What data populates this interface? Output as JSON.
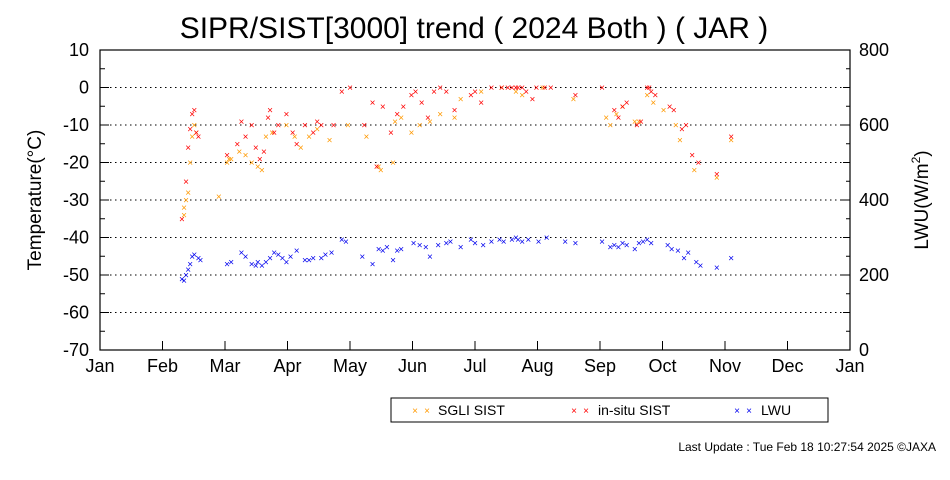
{
  "chart_data": {
    "type": "scatter",
    "title": "SIPR/SIST[3000] trend ( 2024 Both ) ( JAR )",
    "ylabel": "Temperature(°C)",
    "y2label": "LWU(W/m",
    "y2label_sup": "2",
    "y2label_suffix": ")",
    "ylim": [
      -70,
      10
    ],
    "y2lim": [
      0,
      800
    ],
    "yticks": [
      "10",
      "0",
      "-10",
      "-20",
      "-30",
      "-40",
      "-50",
      "-60",
      "-70"
    ],
    "y2ticks": [
      "800",
      "600",
      "400",
      "200",
      "0"
    ],
    "months": [
      "Jan",
      "Feb",
      "Mar",
      "Apr",
      "May",
      "Jun",
      "Jul",
      "Aug",
      "Sep",
      "Oct",
      "Nov",
      "Dec",
      "Jan"
    ],
    "grid": "dotted horizontal",
    "legend_position": "bottom",
    "marker": "×",
    "series": [
      {
        "name": "SGLI SIST",
        "color": "#ff9900",
        "axis": "left",
        "points": [
          [
            "2024-02-11",
            -34
          ],
          [
            "2024-02-11",
            -32
          ],
          [
            "2024-02-12",
            -30
          ],
          [
            "2024-02-13",
            -28
          ],
          [
            "2024-02-14",
            -20
          ],
          [
            "2024-02-15",
            -13
          ],
          [
            "2024-02-16",
            -10
          ],
          [
            "2024-02-17",
            -12
          ],
          [
            "2024-02-28",
            -29
          ],
          [
            "2024-03-03",
            -20
          ],
          [
            "2024-03-04",
            -19
          ],
          [
            "2024-03-05",
            -19
          ],
          [
            "2024-03-09",
            -17
          ],
          [
            "2024-03-12",
            -18
          ],
          [
            "2024-03-15",
            -20
          ],
          [
            "2024-03-18",
            -21
          ],
          [
            "2024-03-20",
            -22
          ],
          [
            "2024-03-22",
            -13
          ],
          [
            "2024-03-25",
            -12
          ],
          [
            "2024-04-01",
            -10
          ],
          [
            "2024-04-05",
            -13
          ],
          [
            "2024-04-08",
            -16
          ],
          [
            "2024-04-12",
            -13
          ],
          [
            "2024-04-16",
            -11
          ],
          [
            "2024-04-22",
            -14
          ],
          [
            "2024-05-01",
            -10
          ],
          [
            "2024-05-10",
            -13
          ],
          [
            "2024-05-16",
            -21
          ],
          [
            "2024-05-17",
            -22
          ],
          [
            "2024-05-23",
            -20
          ],
          [
            "2024-05-24",
            -9
          ],
          [
            "2024-05-27",
            -8
          ],
          [
            "2024-06-01",
            -12
          ],
          [
            "2024-06-05",
            -10
          ],
          [
            "2024-06-10",
            -9
          ],
          [
            "2024-06-15",
            -7
          ],
          [
            "2024-06-22",
            -8
          ],
          [
            "2024-06-25",
            -3
          ],
          [
            "2024-07-05",
            -1
          ],
          [
            "2024-07-15",
            0
          ],
          [
            "2024-07-22",
            -1
          ],
          [
            "2024-07-25",
            -2
          ],
          [
            "2024-08-04",
            0
          ],
          [
            "2024-08-19",
            -3
          ],
          [
            "2024-09-04",
            -8
          ],
          [
            "2024-09-06",
            -10
          ],
          [
            "2024-09-09",
            -7
          ],
          [
            "2024-09-12",
            -5
          ],
          [
            "2024-09-18",
            -9
          ],
          [
            "2024-09-20",
            -9
          ],
          [
            "2024-09-24",
            -2
          ],
          [
            "2024-09-27",
            -4
          ],
          [
            "2024-10-02",
            -6
          ],
          [
            "2024-10-08",
            -10
          ],
          [
            "2024-10-10",
            -14
          ],
          [
            "2024-10-17",
            -22
          ],
          [
            "2024-10-28",
            -24
          ],
          [
            "2024-11-04",
            -14
          ]
        ]
      },
      {
        "name": "in-situ SIST",
        "color": "#ff0000",
        "axis": "left",
        "points": [
          [
            "2024-02-10",
            -35
          ],
          [
            "2024-02-12",
            -25
          ],
          [
            "2024-02-13",
            -16
          ],
          [
            "2024-02-14",
            -11
          ],
          [
            "2024-02-15",
            -7
          ],
          [
            "2024-02-16",
            -6
          ],
          [
            "2024-02-17",
            -12
          ],
          [
            "2024-02-18",
            -13
          ],
          [
            "2024-03-03",
            -18
          ],
          [
            "2024-03-08",
            -15
          ],
          [
            "2024-03-10",
            -9
          ],
          [
            "2024-03-12",
            -13
          ],
          [
            "2024-03-15",
            -10
          ],
          [
            "2024-03-17",
            -16
          ],
          [
            "2024-03-19",
            -19
          ],
          [
            "2024-03-21",
            -17
          ],
          [
            "2024-03-23",
            -8
          ],
          [
            "2024-03-24",
            -6
          ],
          [
            "2024-03-26",
            -12
          ],
          [
            "2024-03-28",
            -10
          ],
          [
            "2024-04-01",
            -7
          ],
          [
            "2024-04-04",
            -12
          ],
          [
            "2024-04-06",
            -15
          ],
          [
            "2024-04-10",
            -10
          ],
          [
            "2024-04-14",
            -12
          ],
          [
            "2024-04-16",
            -9
          ],
          [
            "2024-04-18",
            -10
          ],
          [
            "2024-04-24",
            -10
          ],
          [
            "2024-04-28",
            -1
          ],
          [
            "2024-05-02",
            0
          ],
          [
            "2024-05-09",
            -10
          ],
          [
            "2024-05-13",
            -4
          ],
          [
            "2024-05-15",
            -21
          ],
          [
            "2024-05-18",
            -5
          ],
          [
            "2024-05-22",
            -12
          ],
          [
            "2024-05-25",
            -7
          ],
          [
            "2024-05-28",
            -5
          ],
          [
            "2024-06-01",
            -2
          ],
          [
            "2024-06-03",
            -1
          ],
          [
            "2024-06-06",
            -4
          ],
          [
            "2024-06-09",
            -8
          ],
          [
            "2024-06-12",
            -1
          ],
          [
            "2024-06-15",
            0
          ],
          [
            "2024-06-18",
            -1
          ],
          [
            "2024-06-22",
            -6
          ],
          [
            "2024-06-30",
            -2
          ],
          [
            "2024-07-02",
            -1
          ],
          [
            "2024-07-05",
            -4
          ],
          [
            "2024-07-10",
            0
          ],
          [
            "2024-07-15",
            0
          ],
          [
            "2024-07-18",
            0
          ],
          [
            "2024-07-20",
            0
          ],
          [
            "2024-07-22",
            0
          ],
          [
            "2024-07-23",
            0
          ],
          [
            "2024-07-25",
            0
          ],
          [
            "2024-07-27",
            -1
          ],
          [
            "2024-07-30",
            -3
          ],
          [
            "2024-08-01",
            0
          ],
          [
            "2024-08-05",
            0
          ],
          [
            "2024-08-08",
            0
          ],
          [
            "2024-08-20",
            -2
          ],
          [
            "2024-09-02",
            0
          ],
          [
            "2024-09-08",
            -6
          ],
          [
            "2024-09-10",
            -8
          ],
          [
            "2024-09-12",
            -5
          ],
          [
            "2024-09-14",
            -4
          ],
          [
            "2024-09-19",
            -10
          ],
          [
            "2024-09-21",
            -9
          ],
          [
            "2024-09-24",
            0
          ],
          [
            "2024-09-25",
            0
          ],
          [
            "2024-09-26",
            -1
          ],
          [
            "2024-09-28",
            -2
          ],
          [
            "2024-10-05",
            -5
          ],
          [
            "2024-10-07",
            -6
          ],
          [
            "2024-10-11",
            -11
          ],
          [
            "2024-10-13",
            -10
          ],
          [
            "2024-10-16",
            -18
          ],
          [
            "2024-10-19",
            -20
          ],
          [
            "2024-10-28",
            -23
          ],
          [
            "2024-11-04",
            -13
          ]
        ]
      },
      {
        "name": "LWU",
        "color": "#0000ee",
        "axis": "right",
        "points": [
          [
            "2024-02-10",
            190
          ],
          [
            "2024-02-11",
            185
          ],
          [
            "2024-02-12",
            200
          ],
          [
            "2024-02-13",
            215
          ],
          [
            "2024-02-14",
            230
          ],
          [
            "2024-02-15",
            250
          ],
          [
            "2024-02-16",
            255
          ],
          [
            "2024-02-18",
            245
          ],
          [
            "2024-02-19",
            240
          ],
          [
            "2024-03-03",
            230
          ],
          [
            "2024-03-05",
            235
          ],
          [
            "2024-03-10",
            260
          ],
          [
            "2024-03-12",
            250
          ],
          [
            "2024-03-15",
            230
          ],
          [
            "2024-03-17",
            225
          ],
          [
            "2024-03-18",
            235
          ],
          [
            "2024-03-20",
            225
          ],
          [
            "2024-03-22",
            235
          ],
          [
            "2024-03-24",
            245
          ],
          [
            "2024-03-26",
            260
          ],
          [
            "2024-03-28",
            255
          ],
          [
            "2024-03-30",
            245
          ],
          [
            "2024-04-01",
            235
          ],
          [
            "2024-04-03",
            250
          ],
          [
            "2024-04-06",
            265
          ],
          [
            "2024-04-10",
            240
          ],
          [
            "2024-04-12",
            240
          ],
          [
            "2024-04-14",
            245
          ],
          [
            "2024-04-18",
            245
          ],
          [
            "2024-04-20",
            255
          ],
          [
            "2024-04-23",
            260
          ],
          [
            "2024-04-28",
            295
          ],
          [
            "2024-04-30",
            290
          ],
          [
            "2024-05-08",
            250
          ],
          [
            "2024-05-13",
            230
          ],
          [
            "2024-05-16",
            270
          ],
          [
            "2024-05-18",
            265
          ],
          [
            "2024-05-20",
            275
          ],
          [
            "2024-05-23",
            240
          ],
          [
            "2024-05-25",
            265
          ],
          [
            "2024-05-27",
            270
          ],
          [
            "2024-06-02",
            285
          ],
          [
            "2024-06-05",
            280
          ],
          [
            "2024-06-08",
            275
          ],
          [
            "2024-06-10",
            250
          ],
          [
            "2024-06-14",
            280
          ],
          [
            "2024-06-18",
            285
          ],
          [
            "2024-06-20",
            290
          ],
          [
            "2024-06-25",
            275
          ],
          [
            "2024-06-30",
            295
          ],
          [
            "2024-07-02",
            285
          ],
          [
            "2024-07-06",
            280
          ],
          [
            "2024-07-10",
            290
          ],
          [
            "2024-07-14",
            295
          ],
          [
            "2024-07-16",
            290
          ],
          [
            "2024-07-20",
            295
          ],
          [
            "2024-07-22",
            300
          ],
          [
            "2024-07-23",
            295
          ],
          [
            "2024-07-25",
            290
          ],
          [
            "2024-07-28",
            295
          ],
          [
            "2024-08-02",
            290
          ],
          [
            "2024-08-06",
            300
          ],
          [
            "2024-08-15",
            290
          ],
          [
            "2024-08-20",
            285
          ],
          [
            "2024-09-02",
            290
          ],
          [
            "2024-09-06",
            275
          ],
          [
            "2024-09-08",
            280
          ],
          [
            "2024-09-10",
            275
          ],
          [
            "2024-09-12",
            285
          ],
          [
            "2024-09-14",
            280
          ],
          [
            "2024-09-18",
            270
          ],
          [
            "2024-09-20",
            285
          ],
          [
            "2024-09-22",
            290
          ],
          [
            "2024-09-24",
            295
          ],
          [
            "2024-09-26",
            285
          ],
          [
            "2024-10-04",
            280
          ],
          [
            "2024-10-06",
            270
          ],
          [
            "2024-10-09",
            265
          ],
          [
            "2024-10-12",
            245
          ],
          [
            "2024-10-14",
            260
          ],
          [
            "2024-10-18",
            235
          ],
          [
            "2024-10-20",
            225
          ],
          [
            "2024-10-28",
            220
          ],
          [
            "2024-11-04",
            245
          ]
        ]
      }
    ]
  },
  "footer": {
    "text": "Last Update : Tue Feb 18 10:27:54 2025  ©JAXA"
  }
}
